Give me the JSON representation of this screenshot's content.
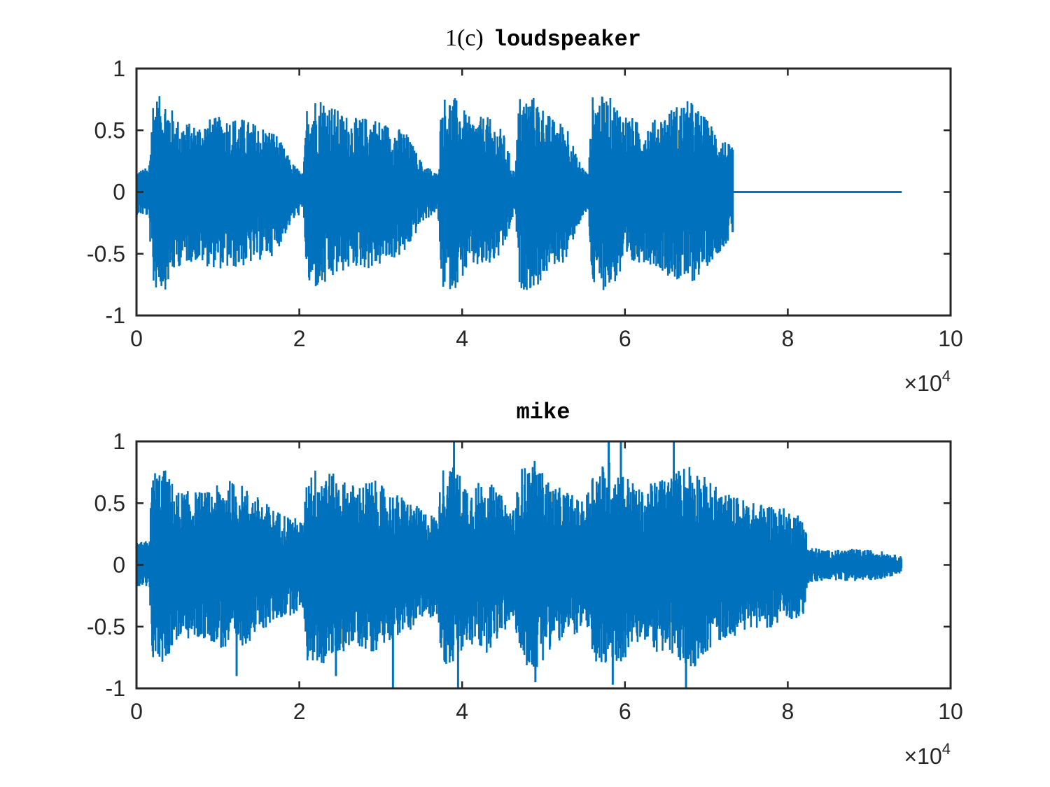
{
  "figure": {
    "background": "#ffffff",
    "axis_color": "#262626",
    "line_color": "#0072bd"
  },
  "chart_data": [
    {
      "type": "line",
      "title_prefix": "1(c)",
      "title_main": "loudspeaker",
      "xlim": [
        0,
        100000
      ],
      "ylim": [
        -1,
        1
      ],
      "x_ticks": [
        0,
        20000,
        40000,
        60000,
        80000,
        100000
      ],
      "x_tick_labels": [
        "0",
        "2",
        "4",
        "6",
        "8",
        "10"
      ],
      "x_exponent_base": "×10",
      "x_exponent_power": "4",
      "y_ticks": [
        -1,
        -0.5,
        0,
        0.5,
        1
      ],
      "y_tick_labels": [
        "-1",
        "-0.5",
        "0",
        "0.5",
        "1"
      ],
      "series": [
        {
          "x_range": [
            0,
            94000
          ],
          "signal_end": 73300,
          "envelope": [
            [
              0,
              0.18
            ],
            [
              1500,
              0.2
            ],
            [
              2000,
              0.78
            ],
            [
              3500,
              0.78
            ],
            [
              5000,
              0.6
            ],
            [
              7000,
              0.55
            ],
            [
              9000,
              0.6
            ],
            [
              11000,
              0.62
            ],
            [
              13000,
              0.6
            ],
            [
              15000,
              0.55
            ],
            [
              17000,
              0.5
            ],
            [
              19000,
              0.25
            ],
            [
              20500,
              0.15
            ],
            [
              21000,
              0.78
            ],
            [
              23000,
              0.78
            ],
            [
              25000,
              0.65
            ],
            [
              27000,
              0.6
            ],
            [
              29000,
              0.62
            ],
            [
              31000,
              0.55
            ],
            [
              33000,
              0.5
            ],
            [
              35000,
              0.25
            ],
            [
              37000,
              0.15
            ],
            [
              37500,
              0.78
            ],
            [
              39000,
              0.78
            ],
            [
              41000,
              0.6
            ],
            [
              43000,
              0.62
            ],
            [
              45000,
              0.5
            ],
            [
              46500,
              0.15
            ],
            [
              47000,
              0.78
            ],
            [
              49000,
              0.78
            ],
            [
              51000,
              0.6
            ],
            [
              53000,
              0.55
            ],
            [
              54000,
              0.3
            ],
            [
              55500,
              0.15
            ],
            [
              56000,
              0.78
            ],
            [
              58000,
              0.78
            ],
            [
              60000,
              0.65
            ],
            [
              62000,
              0.55
            ],
            [
              64000,
              0.6
            ],
            [
              66000,
              0.7
            ],
            [
              68000,
              0.75
            ],
            [
              70000,
              0.6
            ],
            [
              72000,
              0.45
            ],
            [
              73300,
              0.35
            ]
          ],
          "peak_max": 0.78,
          "peak_min": -0.8
        }
      ]
    },
    {
      "type": "line",
      "title_prefix": "",
      "title_main": "mike",
      "xlim": [
        0,
        100000
      ],
      "ylim": [
        -1,
        1
      ],
      "x_ticks": [
        0,
        20000,
        40000,
        60000,
        80000,
        100000
      ],
      "x_tick_labels": [
        "0",
        "2",
        "4",
        "6",
        "8",
        "10"
      ],
      "x_exponent_base": "×10",
      "x_exponent_power": "4",
      "y_ticks": [
        -1,
        -0.5,
        0,
        0.5,
        1
      ],
      "y_tick_labels": [
        "-1",
        "-0.5",
        "0",
        "0.5",
        "1"
      ],
      "series": [
        {
          "x_range": [
            0,
            94000
          ],
          "signal_end": 94000,
          "envelope": [
            [
              0,
              0.18
            ],
            [
              1500,
              0.2
            ],
            [
              2000,
              0.78
            ],
            [
              3500,
              0.78
            ],
            [
              5000,
              0.6
            ],
            [
              7000,
              0.6
            ],
            [
              9000,
              0.6
            ],
            [
              11000,
              0.7
            ],
            [
              13000,
              0.65
            ],
            [
              15000,
              0.55
            ],
            [
              17000,
              0.45
            ],
            [
              19000,
              0.4
            ],
            [
              20500,
              0.35
            ],
            [
              21000,
              0.78
            ],
            [
              23000,
              0.8
            ],
            [
              25000,
              0.7
            ],
            [
              27000,
              0.65
            ],
            [
              29000,
              0.7
            ],
            [
              31000,
              0.6
            ],
            [
              33000,
              0.55
            ],
            [
              35000,
              0.45
            ],
            [
              37000,
              0.4
            ],
            [
              37500,
              0.8
            ],
            [
              39000,
              0.8
            ],
            [
              41000,
              0.65
            ],
            [
              43000,
              0.7
            ],
            [
              45000,
              0.55
            ],
            [
              46500,
              0.45
            ],
            [
              47000,
              0.78
            ],
            [
              49000,
              0.85
            ],
            [
              51000,
              0.65
            ],
            [
              53000,
              0.6
            ],
            [
              55000,
              0.5
            ],
            [
              56000,
              0.78
            ],
            [
              58000,
              0.85
            ],
            [
              60000,
              0.75
            ],
            [
              62000,
              0.6
            ],
            [
              64000,
              0.7
            ],
            [
              66000,
              0.75
            ],
            [
              68000,
              0.85
            ],
            [
              70000,
              0.7
            ],
            [
              72000,
              0.6
            ],
            [
              74000,
              0.55
            ],
            [
              76000,
              0.5
            ],
            [
              78000,
              0.5
            ],
            [
              80000,
              0.45
            ],
            [
              82000,
              0.4
            ],
            [
              82500,
              0.15
            ],
            [
              85000,
              0.12
            ],
            [
              88000,
              0.13
            ],
            [
              91000,
              0.12
            ],
            [
              94000,
              0.07
            ]
          ],
          "spikes": [
            [
              39000,
              1.0
            ],
            [
              58000,
              1.0
            ],
            [
              59500,
              1.0
            ],
            [
              66000,
              1.0
            ],
            [
              31500,
              -1.0
            ],
            [
              39500,
              -1.0
            ],
            [
              49000,
              -0.95
            ],
            [
              58500,
              -0.97
            ],
            [
              67500,
              -1.0
            ],
            [
              12300,
              -0.9
            ],
            [
              24500,
              -0.9
            ]
          ]
        }
      ]
    }
  ]
}
